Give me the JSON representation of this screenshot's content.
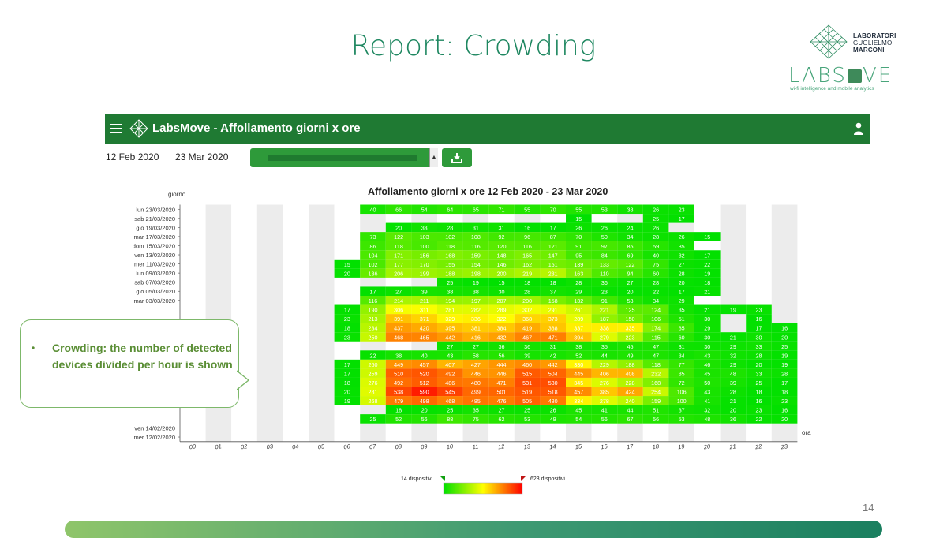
{
  "slide": {
    "title": "Report: Crowding",
    "page_number": "14"
  },
  "logo": {
    "line1": "LABORATORI",
    "line2": "GUGLIELMO",
    "line3": "MARCONI",
    "brand_pre": "LABS",
    "brand_post": "VE",
    "tagline": "wi-fi intelligence and mobile analytics"
  },
  "app_bar": {
    "title": "LabsMove - Affollamento giorni x ore",
    "color": "#1f7a33"
  },
  "filters": {
    "start_date": "12 Feb 2020",
    "end_date": "23 Mar 2020"
  },
  "callout": {
    "bullet": "•",
    "text": "Crowding: the number of detected devices divided per hour is shown"
  },
  "chart_data": {
    "type": "heatmap",
    "title": "Affollamento giorni x ore 12 Feb 2020 - 23 Mar 2020",
    "ylabel": "giorno",
    "xlabel": "ora",
    "hours": [
      "00",
      "01",
      "02",
      "03",
      "04",
      "05",
      "06",
      "07",
      "08",
      "09",
      "10",
      "11",
      "12",
      "13",
      "14",
      "15",
      "16",
      "17",
      "18",
      "19",
      "20",
      "21",
      "22",
      "23"
    ],
    "day_labels": [
      "lun 23/03/2020",
      "sab 21/03/2020",
      "gio 19/03/2020",
      "mar 17/03/2020",
      "dom 15/03/2020",
      "ven 13/03/2020",
      "mer 11/03/2020",
      "lun 09/03/2020",
      "sab 07/03/2020",
      "gio 05/03/2020",
      "mar 03/03/2020",
      "",
      "",
      "",
      "",
      "",
      "",
      "",
      "",
      "",
      "",
      "",
      "",
      "",
      "ven 14/02/2020",
      "mer 12/02/2020"
    ],
    "legend": {
      "min_label": "14 dispositivi",
      "max_label": "623 dispositivi",
      "min": 14,
      "max": 623,
      "colors": [
        "#00e000",
        "#ffff00",
        "#ff0000"
      ]
    },
    "rows": [
      [
        null,
        null,
        null,
        null,
        null,
        null,
        null,
        40,
        66,
        54,
        64,
        65,
        71,
        55,
        70,
        55,
        53,
        38,
        26,
        23,
        null,
        null,
        null,
        null
      ],
      [
        null,
        null,
        null,
        null,
        null,
        null,
        null,
        null,
        null,
        null,
        null,
        null,
        null,
        null,
        null,
        15,
        null,
        null,
        25,
        17,
        null,
        null,
        null,
        null
      ],
      [
        null,
        null,
        null,
        null,
        null,
        null,
        null,
        null,
        20,
        33,
        28,
        31,
        31,
        16,
        17,
        26,
        26,
        24,
        26,
        null,
        null,
        null,
        null,
        null
      ],
      [
        null,
        null,
        null,
        null,
        null,
        null,
        null,
        73,
        122,
        103,
        102,
        108,
        92,
        96,
        87,
        70,
        50,
        34,
        28,
        26,
        15,
        null,
        null,
        null
      ],
      [
        null,
        null,
        null,
        null,
        null,
        null,
        null,
        86,
        118,
        100,
        118,
        116,
        120,
        116,
        121,
        91,
        97,
        85,
        59,
        35,
        null,
        null,
        null,
        null
      ],
      [
        null,
        null,
        null,
        null,
        null,
        null,
        null,
        104,
        171,
        156,
        168,
        159,
        148,
        165,
        147,
        95,
        84,
        69,
        40,
        32,
        17,
        null,
        null,
        null
      ],
      [
        null,
        null,
        null,
        null,
        null,
        null,
        15,
        102,
        177,
        170,
        155,
        154,
        146,
        162,
        151,
        139,
        133,
        122,
        75,
        27,
        22,
        null,
        null,
        null
      ],
      [
        null,
        null,
        null,
        null,
        null,
        null,
        20,
        136,
        206,
        199,
        188,
        198,
        200,
        219,
        231,
        163,
        110,
        94,
        60,
        28,
        19,
        null,
        null,
        null
      ],
      [
        null,
        null,
        null,
        null,
        null,
        null,
        null,
        null,
        null,
        null,
        25,
        19,
        15,
        18,
        18,
        28,
        36,
        27,
        28,
        20,
        18,
        null,
        null,
        null
      ],
      [
        null,
        null,
        null,
        null,
        null,
        null,
        null,
        17,
        27,
        39,
        38,
        38,
        30,
        28,
        37,
        29,
        23,
        20,
        22,
        17,
        21,
        null,
        null,
        null
      ],
      [
        null,
        null,
        null,
        null,
        null,
        null,
        null,
        116,
        214,
        211,
        194,
        197,
        207,
        200,
        158,
        132,
        91,
        53,
        34,
        29,
        null,
        null,
        null,
        null
      ],
      [
        null,
        null,
        null,
        null,
        null,
        null,
        17,
        190,
        306,
        311,
        281,
        282,
        289,
        302,
        291,
        261,
        221,
        125,
        124,
        35,
        21,
        19,
        23,
        null
      ],
      [
        null,
        null,
        null,
        null,
        null,
        null,
        23,
        213,
        391,
        371,
        329,
        336,
        322,
        368,
        373,
        289,
        187,
        150,
        106,
        51,
        30,
        null,
        16,
        null
      ],
      [
        null,
        null,
        null,
        null,
        null,
        null,
        18,
        234,
        437,
        420,
        395,
        381,
        384,
        419,
        388,
        337,
        338,
        335,
        174,
        85,
        29,
        null,
        17,
        16
      ],
      [
        null,
        null,
        null,
        null,
        null,
        null,
        23,
        250,
        468,
        465,
        442,
        416,
        432,
        467,
        471,
        394,
        279,
        223,
        115,
        60,
        30,
        21,
        30,
        20
      ],
      [
        null,
        null,
        null,
        null,
        null,
        null,
        null,
        null,
        null,
        null,
        27,
        27,
        36,
        36,
        31,
        38,
        35,
        45,
        47,
        31,
        30,
        29,
        33,
        25
      ],
      [
        null,
        null,
        null,
        null,
        null,
        null,
        null,
        22,
        38,
        40,
        43,
        58,
        56,
        39,
        42,
        52,
        44,
        49,
        47,
        34,
        43,
        32,
        28,
        19
      ],
      [
        null,
        null,
        null,
        null,
        null,
        null,
        17,
        260,
        449,
        457,
        407,
        427,
        444,
        460,
        442,
        330,
        229,
        188,
        118,
        77,
        46,
        29,
        20,
        19
      ],
      [
        null,
        null,
        null,
        null,
        null,
        null,
        17,
        259,
        510,
        520,
        492,
        446,
        446,
        515,
        504,
        445,
        406,
        408,
        232,
        85,
        45,
        48,
        33,
        28
      ],
      [
        null,
        null,
        null,
        null,
        null,
        null,
        18,
        276,
        492,
        512,
        486,
        480,
        471,
        531,
        530,
        345,
        276,
        228,
        168,
        72,
        50,
        39,
        25,
        17
      ],
      [
        null,
        null,
        null,
        null,
        null,
        null,
        20,
        281,
        538,
        590,
        545,
        499,
        501,
        519,
        518,
        457,
        385,
        424,
        254,
        106,
        43,
        28,
        18,
        18
      ],
      [
        null,
        null,
        null,
        null,
        null,
        null,
        19,
        268,
        479,
        498,
        468,
        485,
        476,
        505,
        480,
        334,
        278,
        240,
        159,
        100,
        41,
        21,
        16,
        23
      ],
      [
        null,
        null,
        null,
        null,
        null,
        null,
        null,
        null,
        18,
        20,
        25,
        35,
        27,
        25,
        26,
        45,
        41,
        44,
        51,
        37,
        32,
        20,
        23,
        16
      ],
      [
        null,
        null,
        null,
        null,
        null,
        null,
        null,
        25,
        52,
        56,
        88,
        75,
        62,
        53,
        49,
        54,
        56,
        67,
        56,
        53,
        48,
        36,
        22,
        20
      ],
      [
        null,
        null,
        null,
        null,
        null,
        null,
        null,
        null,
        null,
        null,
        null,
        null,
        null,
        null,
        null,
        null,
        null,
        null,
        null,
        null,
        null,
        null,
        null,
        null
      ]
    ]
  }
}
